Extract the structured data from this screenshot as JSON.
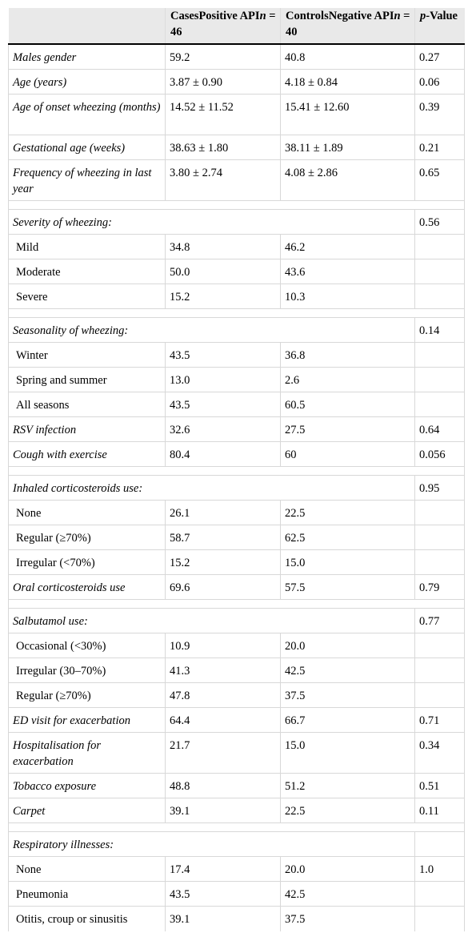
{
  "header": {
    "col0": "",
    "cases_label": "CasesPositive API",
    "cases_n": "n",
    "cases_count": " = 46",
    "controls_label": "ControlsNegative API",
    "controls_n": "n",
    "controls_count": " = 40",
    "p_prefix": "p",
    "p_suffix": "-Value"
  },
  "rows": [
    {
      "type": "data",
      "label": "Males gender",
      "cases": "59.2",
      "controls": "40.8",
      "p": "0.27"
    },
    {
      "type": "data",
      "label": "Age (years)",
      "cases": "3.87 ± 0.90",
      "controls": "4.18 ± 0.84",
      "p": "0.06"
    },
    {
      "type": "data2",
      "label": "Age of onset wheezing (months)",
      "cases": "14.52 ± 11.52",
      "controls": "15.41 ± 12.60",
      "p": "0.39"
    },
    {
      "type": "data",
      "label": "Gestational age (weeks)",
      "cases": "38.63 ± 1.80",
      "controls": "38.11 ± 1.89",
      "p": "0.21"
    },
    {
      "type": "data2",
      "label": "Frequency of wheezing in last year",
      "cases": "3.80 ± 2.74",
      "controls": "4.08 ± 2.86",
      "p": "0.65"
    },
    {
      "type": "spacer"
    },
    {
      "type": "group",
      "label": "Severity of wheezing:",
      "p": "0.56"
    },
    {
      "type": "sub",
      "label": "Mild",
      "cases": "34.8",
      "controls": "46.2",
      "p": ""
    },
    {
      "type": "sub",
      "label": "Moderate",
      "cases": "50.0",
      "controls": "43.6",
      "p": ""
    },
    {
      "type": "sub",
      "label": "Severe",
      "cases": "15.2",
      "controls": "10.3",
      "p": ""
    },
    {
      "type": "spacer"
    },
    {
      "type": "group",
      "label": "Seasonality of wheezing:",
      "p": "0.14"
    },
    {
      "type": "sub",
      "label": "Winter",
      "cases": "43.5",
      "controls": "36.8",
      "p": ""
    },
    {
      "type": "sub",
      "label": "Spring and summer",
      "cases": "13.0",
      "controls": "2.6",
      "p": ""
    },
    {
      "type": "sub",
      "label": "All seasons",
      "cases": "43.5",
      "controls": "60.5",
      "p": ""
    },
    {
      "type": "data",
      "label": "RSV infection",
      "cases": "32.6",
      "controls": "27.5",
      "p": "0.64"
    },
    {
      "type": "data",
      "label": "Cough with exercise",
      "cases": "80.4",
      "controls": "60",
      "p": "0.056"
    },
    {
      "type": "spacer"
    },
    {
      "type": "group",
      "label": "Inhaled corticosteroids use:",
      "p": "0.95"
    },
    {
      "type": "sub",
      "label": "None",
      "cases": "26.1",
      "controls": "22.5",
      "p": ""
    },
    {
      "type": "sub",
      "label": "Regular (≥70%)",
      "cases": "58.7",
      "controls": "62.5",
      "p": ""
    },
    {
      "type": "sub",
      "label": "Irregular (<70%)",
      "cases": "15.2",
      "controls": "15.0",
      "p": ""
    },
    {
      "type": "data",
      "label": "Oral corticosteroids use",
      "cases": "69.6",
      "controls": "57.5",
      "p": "0.79"
    },
    {
      "type": "spacer"
    },
    {
      "type": "group",
      "label": "Salbutamol use:",
      "p": "0.77"
    },
    {
      "type": "sub",
      "label": "Occasional (<30%)",
      "cases": "10.9",
      "controls": "20.0",
      "p": ""
    },
    {
      "type": "sub",
      "label": "Irregular (30–70%)",
      "cases": "41.3",
      "controls": "42.5",
      "p": ""
    },
    {
      "type": "sub",
      "label": "Regular (≥70%)",
      "cases": "47.8",
      "controls": "37.5",
      "p": ""
    },
    {
      "type": "data",
      "label": "ED visit for exacerbation",
      "cases": "64.4",
      "controls": "66.7",
      "p": "0.71"
    },
    {
      "type": "data2",
      "label": "Hospitalisation for exacerbation",
      "cases": "21.7",
      "controls": "15.0",
      "p": "0.34"
    },
    {
      "type": "data",
      "label": "Tobacco exposure",
      "cases": "48.8",
      "controls": "51.2",
      "p": "0.51"
    },
    {
      "type": "data",
      "label": "Carpet",
      "cases": "39.1",
      "controls": "22.5",
      "p": "0.11"
    },
    {
      "type": "spacer"
    },
    {
      "type": "group",
      "label": "Respiratory illnesses:",
      "p": ""
    },
    {
      "type": "sub",
      "label": "None",
      "cases": "17.4",
      "controls": "20.0",
      "p": "1.0"
    },
    {
      "type": "sub",
      "label": "Pneumonia",
      "cases": "43.5",
      "controls": "42.5",
      "p": ""
    },
    {
      "type": "sub",
      "label": "Otitis, croup or sinusitis",
      "cases": "39.1",
      "controls": "37.5",
      "p": ""
    }
  ]
}
